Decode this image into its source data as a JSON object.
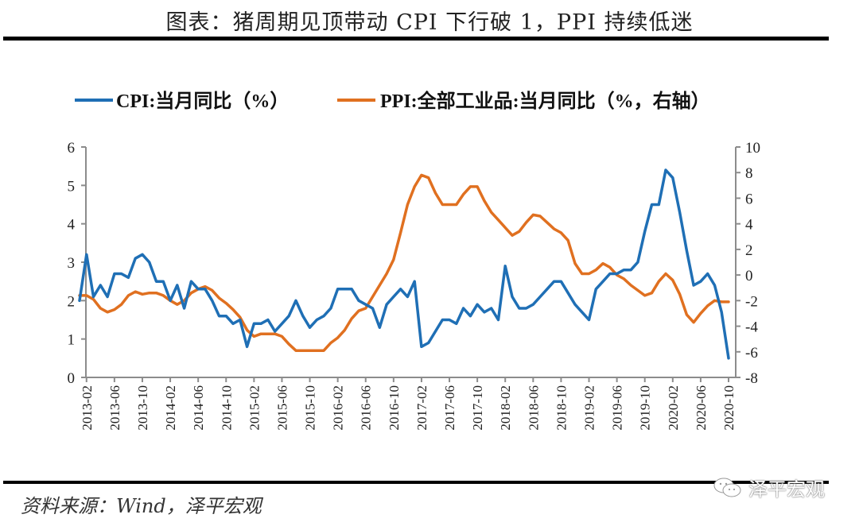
{
  "header": {
    "title": "图表：猪周期见顶带动 CPI 下行破 1，PPI 持续低迷"
  },
  "footer": {
    "source": "资料来源：Wind，泽平宏观",
    "watermark": "泽平宏观"
  },
  "chart_data": {
    "type": "line",
    "title": "图表：猪周期见顶带动 CPI 下行破 1，PPI 持续低迷",
    "xlabel": "",
    "ylabel": "",
    "ylim": [
      0,
      6
    ],
    "y2lim": [
      -8,
      10
    ],
    "yticks": [
      0,
      1,
      2,
      3,
      4,
      5,
      6
    ],
    "y2ticks": [
      -8,
      -6,
      -4,
      -2,
      0,
      2,
      4,
      6,
      8,
      10
    ],
    "grid": false,
    "legend": "top",
    "xtick_labels": [
      "2013-02",
      "2013-06",
      "2013-10",
      "2014-02",
      "2014-06",
      "2014-10",
      "2015-02",
      "2015-06",
      "2015-10",
      "2016-02",
      "2016-06",
      "2016-10",
      "2017-02",
      "2017-06",
      "2017-10",
      "2018-02",
      "2018-06",
      "2018-10",
      "2019-02",
      "2019-06",
      "2019-10",
      "2020-02",
      "2020-06",
      "2020-10"
    ],
    "x_start": "2013-01",
    "x_end": "2020-10",
    "series": [
      {
        "name": "CPI:当月同比（%）",
        "axis": "left",
        "color": "#1F6FB5",
        "values": [
          2.0,
          3.2,
          2.1,
          2.4,
          2.1,
          2.7,
          2.7,
          2.6,
          3.1,
          3.2,
          3.0,
          2.5,
          2.5,
          2.0,
          2.4,
          1.8,
          2.5,
          2.3,
          2.3,
          2.0,
          1.6,
          1.6,
          1.4,
          1.5,
          0.8,
          1.4,
          1.4,
          1.5,
          1.2,
          1.4,
          1.6,
          2.0,
          1.6,
          1.3,
          1.5,
          1.6,
          1.8,
          2.3,
          2.3,
          2.3,
          2.0,
          1.9,
          1.8,
          1.3,
          1.9,
          2.1,
          2.3,
          2.1,
          2.5,
          0.8,
          0.9,
          1.2,
          1.5,
          1.5,
          1.4,
          1.8,
          1.6,
          1.9,
          1.7,
          1.8,
          1.5,
          2.9,
          2.1,
          1.8,
          1.8,
          1.9,
          2.1,
          2.3,
          2.5,
          2.5,
          2.2,
          1.9,
          1.7,
          1.5,
          2.3,
          2.5,
          2.7,
          2.7,
          2.8,
          2.8,
          3.0,
          3.8,
          4.5,
          4.5,
          5.4,
          5.2,
          4.3,
          3.3,
          2.4,
          2.5,
          2.7,
          2.4,
          1.7,
          0.5
        ]
      },
      {
        "name": "PPI:全部工业品:当月同比（%，右轴）",
        "axis": "right",
        "color": "#E07020",
        "values": [
          -1.6,
          -1.6,
          -1.9,
          -2.6,
          -2.9,
          -2.7,
          -2.3,
          -1.6,
          -1.3,
          -1.5,
          -1.4,
          -1.4,
          -1.6,
          -2.0,
          -2.3,
          -2.0,
          -1.4,
          -1.1,
          -0.9,
          -1.2,
          -1.8,
          -2.2,
          -2.7,
          -3.3,
          -4.3,
          -4.8,
          -4.6,
          -4.6,
          -4.6,
          -4.8,
          -5.4,
          -5.9,
          -5.9,
          -5.9,
          -5.9,
          -5.9,
          -5.3,
          -4.9,
          -4.3,
          -3.4,
          -2.8,
          -2.6,
          -1.7,
          -0.8,
          0.1,
          1.2,
          3.3,
          5.5,
          6.9,
          7.8,
          7.6,
          6.4,
          5.5,
          5.5,
          5.5,
          6.3,
          6.9,
          6.9,
          5.8,
          4.9,
          4.3,
          3.7,
          3.1,
          3.4,
          4.1,
          4.7,
          4.6,
          4.1,
          3.6,
          3.3,
          2.7,
          0.9,
          0.1,
          0.1,
          0.4,
          0.9,
          0.6,
          0.0,
          -0.3,
          -0.8,
          -1.2,
          -1.6,
          -1.4,
          -0.5,
          0.1,
          -0.4,
          -1.5,
          -3.1,
          -3.7,
          -3.0,
          -2.4,
          -2.0,
          -2.1,
          -2.1
        ]
      }
    ]
  }
}
